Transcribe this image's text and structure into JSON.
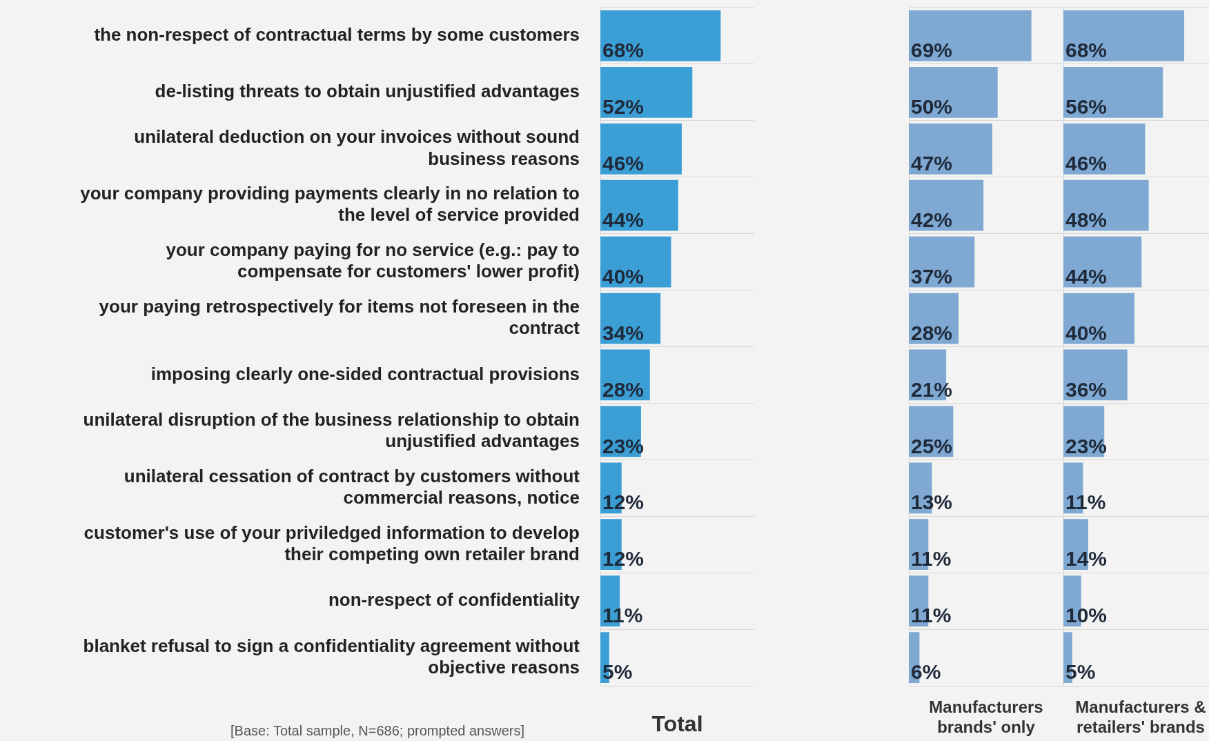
{
  "chart_data": [
    {
      "type": "bar",
      "orientation": "horizontal",
      "xlabel": "Total",
      "categories": [
        "the non-respect of contractual terms by some customers",
        "de-listing threats to obtain unjustified advantages",
        "unilateral deduction on your invoices without sound business reasons",
        "your company providing payments clearly in no relation to the level of service provided",
        "your company paying for no service (e.g.: pay to compensate for customers' lower profit)",
        "your paying retrospectively for items not foreseen in the contract",
        "imposing clearly one-sided contractual provisions",
        "unilateral disruption of the business relationship to obtain unjustified advantages",
        "unilateral cessation of contract by customers without commercial reasons, notice",
        "customer's use of your priviledged information to develop their competing own retailer brand",
        "non-respect of confidentiality",
        "blanket refusal to sign a confidentiality agreement without objective reasons"
      ],
      "values": [
        68,
        52,
        46,
        44,
        40,
        34,
        28,
        23,
        12,
        12,
        11,
        5
      ],
      "color": "#3b9fd6",
      "xlim": [
        0,
        87
      ],
      "value_labels": [
        "68%",
        "52%",
        "46%",
        "44%",
        "40%",
        "34%",
        "28%",
        "23%",
        "12%",
        "12%",
        "11%",
        "5%"
      ],
      "tick_labels": "y",
      "grid": true,
      "annotations": [
        "[Base: Total sample, N=686; prompted answers]"
      ]
    },
    {
      "type": "bar",
      "orientation": "horizontal",
      "xlabel": "Manufacturers brands' only",
      "categories": [
        null,
        null,
        null,
        null,
        null,
        null,
        null,
        null,
        null,
        null,
        null,
        null
      ],
      "values": [
        69,
        50,
        47,
        42,
        37,
        28,
        21,
        25,
        13,
        11,
        11,
        6
      ],
      "color": "#7fa9d3",
      "xlim": [
        0,
        87
      ],
      "value_labels": [
        "69%",
        "50%",
        "47%",
        "42%",
        "37%",
        "28%",
        "21%",
        "25%",
        "13%",
        "11%",
        "11%",
        "6%"
      ],
      "tick_labels": false,
      "grid": true
    },
    {
      "type": "bar",
      "orientation": "horizontal",
      "xlabel": "Manufacturers & retailers' brands",
      "categories": [
        null,
        null,
        null,
        null,
        null,
        null,
        null,
        null,
        null,
        null,
        null,
        null
      ],
      "values": [
        68,
        56,
        46,
        48,
        44,
        40,
        36,
        23,
        11,
        14,
        10,
        5
      ],
      "color": "#7fa9d3",
      "xlim": [
        0,
        87
      ],
      "value_labels": [
        "68%",
        "56%",
        "46%",
        "48%",
        "44%",
        "40%",
        "36%",
        "23%",
        "11%",
        "14%",
        "10%",
        "5%"
      ],
      "tick_labels": false,
      "grid": true
    }
  ]
}
